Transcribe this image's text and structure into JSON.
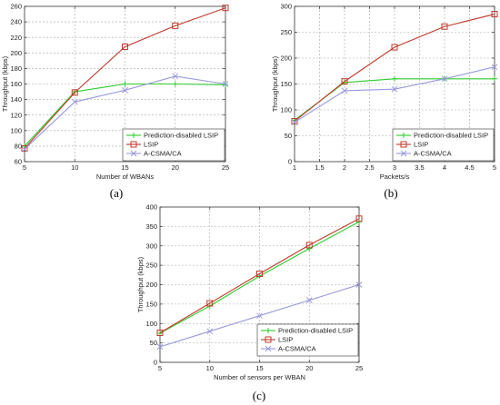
{
  "panels": [
    {
      "id": "a",
      "label": "(a)"
    },
    {
      "id": "b",
      "label": "(b)"
    },
    {
      "id": "c",
      "label": "(c)"
    }
  ],
  "chart_data": [
    {
      "id": "a",
      "type": "line",
      "xlabel": "Number of WBANs",
      "ylabel": "Throughput (kbps)",
      "xlim": [
        5,
        25
      ],
      "ylim": [
        60,
        260
      ],
      "xticks": [
        5,
        10,
        15,
        20,
        25
      ],
      "yticks": [
        60,
        80,
        100,
        120,
        140,
        160,
        180,
        200,
        220,
        240,
        260
      ],
      "x": [
        5,
        10,
        15,
        20,
        25
      ],
      "grid": true,
      "legend_position": "bottom-right",
      "series": [
        {
          "name": "Prediction-disabled LSIP",
          "color": "#2ecc2e",
          "marker": "plus",
          "values": [
            80,
            150,
            160,
            160,
            159
          ]
        },
        {
          "name": "LSIP",
          "color": "#c0392b",
          "marker": "square",
          "values": [
            77,
            149,
            208,
            235,
            258
          ]
        },
        {
          "name": "A-CSMA/CA",
          "color": "#9999dd",
          "marker": "x",
          "values": [
            76,
            137,
            152,
            170,
            160
          ]
        }
      ]
    },
    {
      "id": "b",
      "type": "line",
      "xlabel": "Packets/s",
      "ylabel": "Throughput (kbps)",
      "xlim": [
        1,
        5
      ],
      "ylim": [
        0,
        300
      ],
      "xticks": [
        1,
        1.5,
        2,
        2.5,
        3,
        3.5,
        4,
        4.5,
        5
      ],
      "yticks": [
        0,
        50,
        100,
        150,
        200,
        250,
        300
      ],
      "x": [
        1,
        2,
        3,
        4,
        5
      ],
      "grid": true,
      "legend_position": "bottom-right",
      "series": [
        {
          "name": "Prediction-disabled LSIP",
          "color": "#2ecc2e",
          "marker": "plus",
          "values": [
            80,
            153,
            160,
            160,
            160
          ]
        },
        {
          "name": "LSIP",
          "color": "#c0392b",
          "marker": "square",
          "values": [
            78,
            155,
            221,
            261,
            285
          ]
        },
        {
          "name": "A-CSMA/CA",
          "color": "#9999dd",
          "marker": "x",
          "values": [
            76,
            137,
            140,
            160,
            183
          ]
        }
      ]
    },
    {
      "id": "c",
      "type": "line",
      "xlabel": "Number of sensors per WBAN",
      "ylabel": "Throughput (kbps)",
      "xlim": [
        5,
        25
      ],
      "ylim": [
        0,
        400
      ],
      "xticks": [
        5,
        10,
        15,
        20,
        25
      ],
      "yticks": [
        0,
        50,
        100,
        150,
        200,
        250,
        300,
        350,
        400
      ],
      "x": [
        5,
        10,
        15,
        20,
        25
      ],
      "grid": true,
      "legend_position": "bottom-right",
      "series": [
        {
          "name": "Prediction-disabled LSIP",
          "color": "#2ecc2e",
          "marker": "plus",
          "values": [
            75,
            145,
            222,
            293,
            362
          ]
        },
        {
          "name": "LSIP",
          "color": "#c0392b",
          "marker": "square",
          "values": [
            76,
            152,
            228,
            302,
            370
          ]
        },
        {
          "name": "A-CSMA/CA",
          "color": "#9999dd",
          "marker": "x",
          "values": [
            40,
            80,
            120,
            160,
            200
          ]
        }
      ]
    }
  ]
}
